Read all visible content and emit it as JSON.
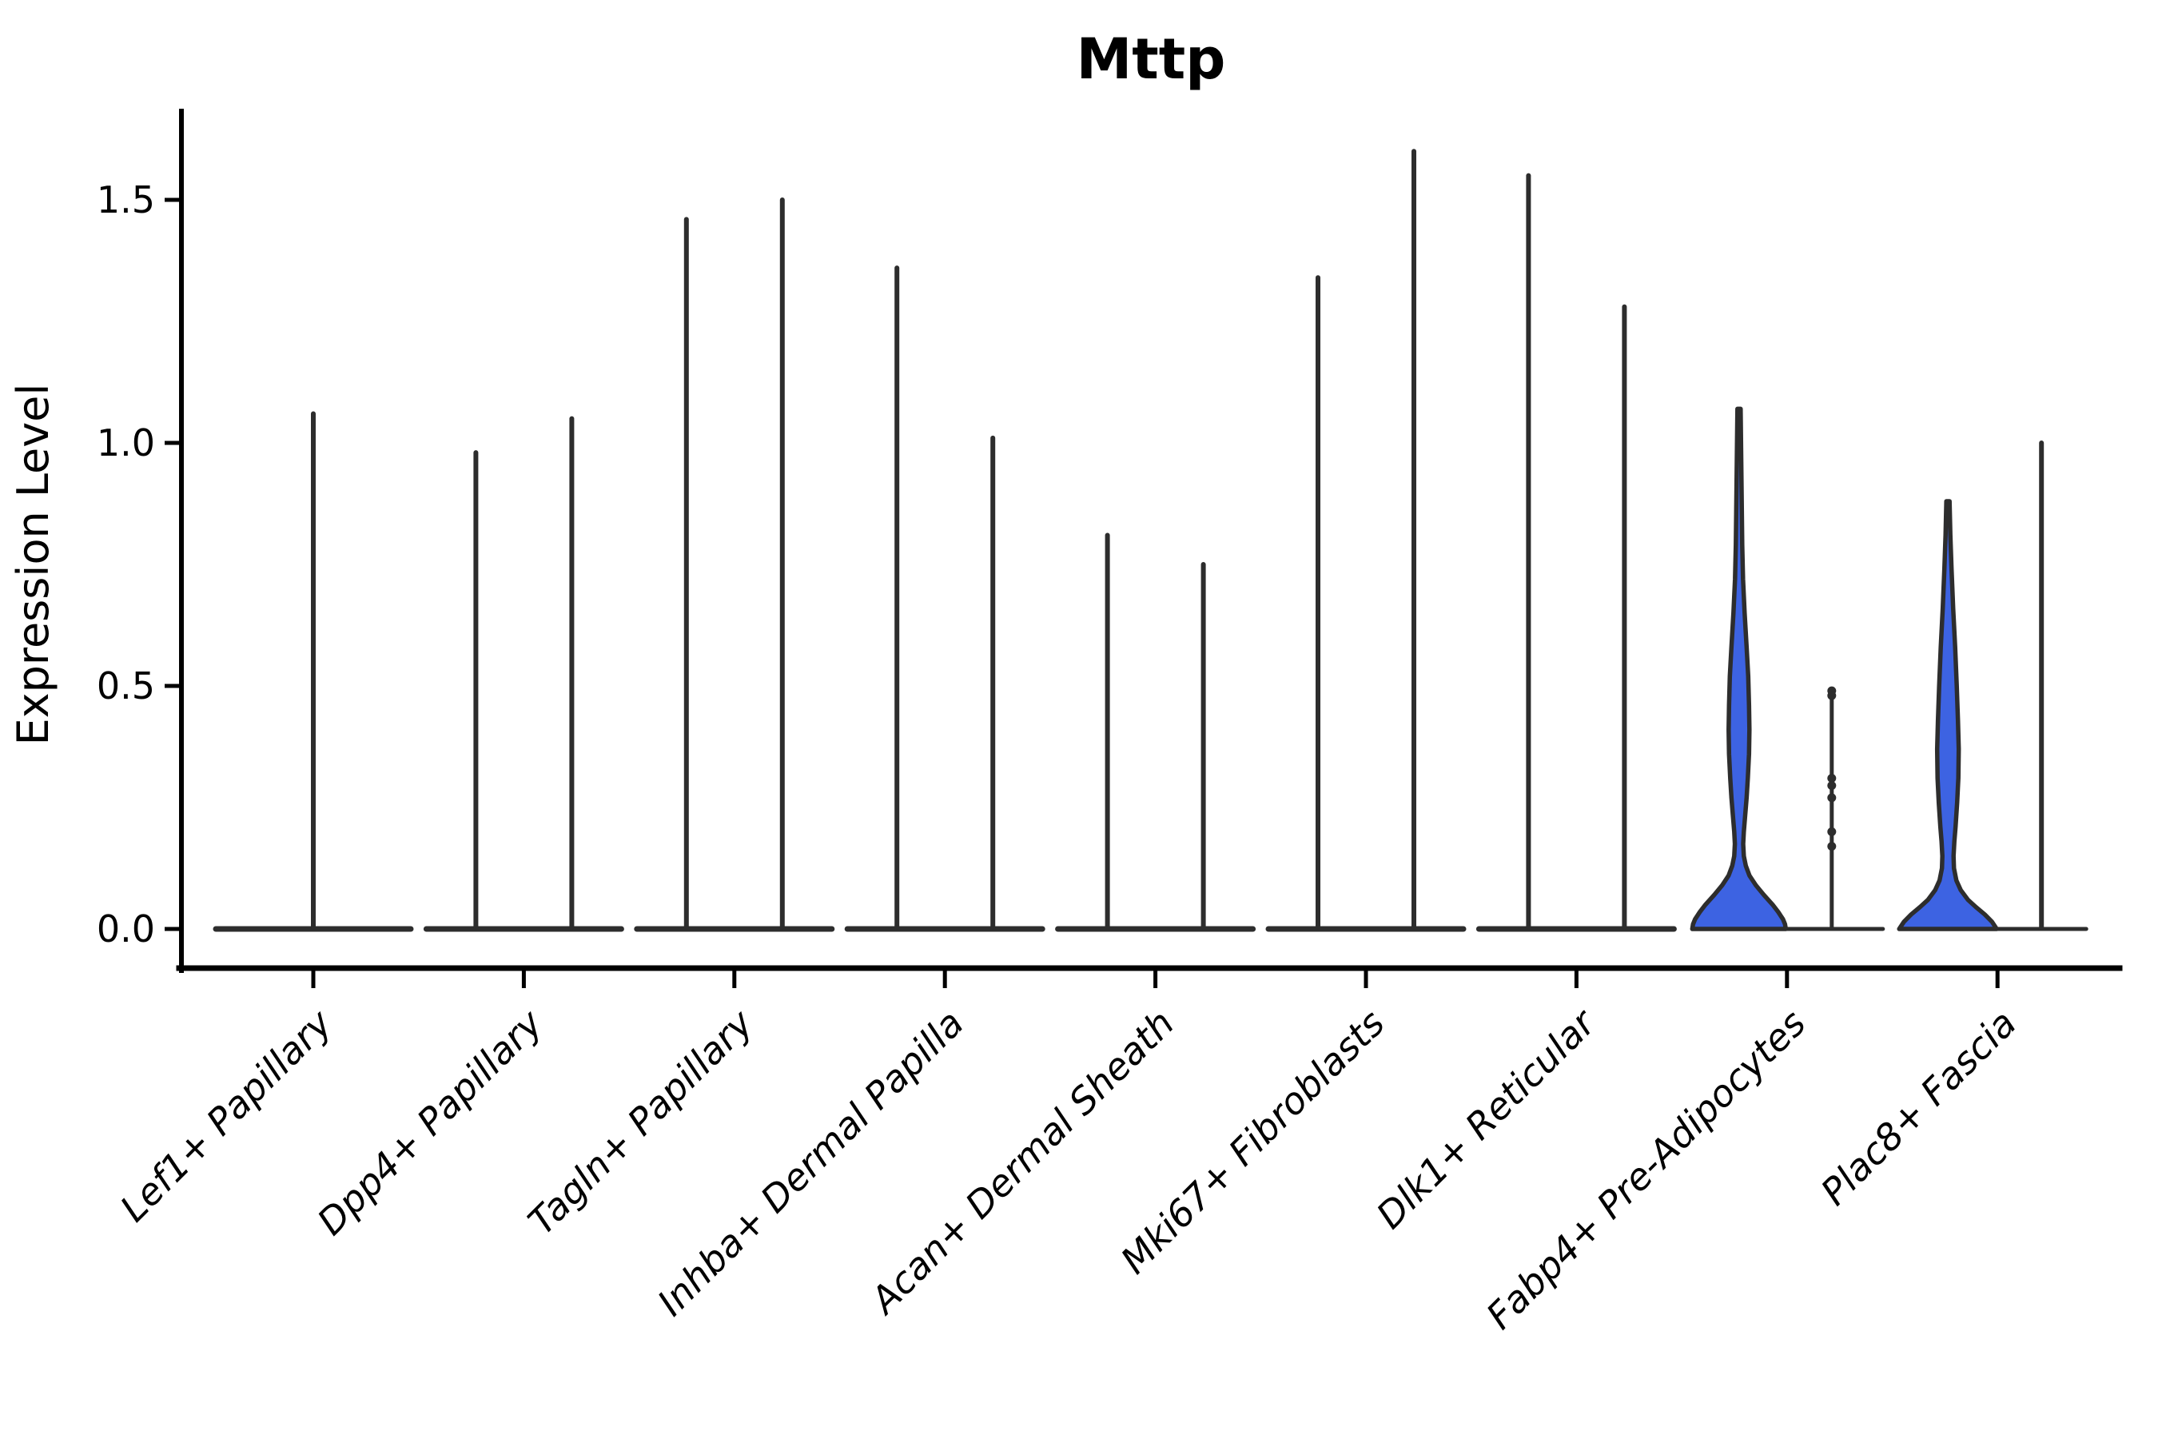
{
  "title": "Mttp",
  "chart_data": {
    "type": "violin",
    "title": "Mttp",
    "ylabel": "Expression Level",
    "ylim": [
      0,
      1.65
    ],
    "yticks": [
      0.0,
      0.5,
      1.0,
      1.5
    ],
    "ytick_labels": [
      "0.0",
      "0.5",
      "1.0",
      "1.5"
    ],
    "grid": false,
    "legend": false,
    "categories": [
      "Lef1+ Papillary",
      "Dpp4+ Papillary",
      "Tagln+ Papillary",
      "Inhba+ Dermal Papilla",
      "Acan+ Dermal Sheath",
      "Mki67+ Fibroblasts",
      "Dlk1+ Reticular",
      "Fabp4+ Pre-Adipocytes",
      "Plac8+ Fascia"
    ],
    "violins": [
      {
        "category": "Lef1+ Papillary",
        "baseline": [
          -122,
          122
        ],
        "baseline_thin": false,
        "spikes": [
          {
            "dx": 0,
            "max": 1.06
          }
        ]
      },
      {
        "category": "Dpp4+ Papillary",
        "baseline": [
          -122,
          122
        ],
        "baseline_thin": false,
        "spikes": [
          {
            "dx": -60,
            "max": 0.98
          },
          {
            "dx": 60,
            "max": 1.05
          }
        ]
      },
      {
        "category": "Tagln+ Papillary",
        "baseline": [
          -122,
          122
        ],
        "baseline_thin": false,
        "spikes": [
          {
            "dx": -60,
            "max": 1.46
          },
          {
            "dx": 60,
            "max": 1.5
          }
        ]
      },
      {
        "category": "Inhba+ Dermal Papilla",
        "baseline": [
          -122,
          122
        ],
        "baseline_thin": false,
        "spikes": [
          {
            "dx": -60,
            "max": 1.36
          },
          {
            "dx": 60,
            "max": 1.01
          }
        ]
      },
      {
        "category": "Acan+ Dermal Sheath",
        "baseline": [
          -122,
          122
        ],
        "baseline_thin": false,
        "spikes": [
          {
            "dx": -60,
            "max": 0.81
          },
          {
            "dx": 60,
            "max": 0.75
          }
        ]
      },
      {
        "category": "Mki67+ Fibroblasts",
        "baseline": [
          -122,
          122
        ],
        "baseline_thin": false,
        "spikes": [
          {
            "dx": -60,
            "max": 1.34
          },
          {
            "dx": 60,
            "max": 1.6
          }
        ]
      },
      {
        "category": "Dlk1+ Reticular",
        "baseline": [
          -122,
          122
        ],
        "baseline_thin": false,
        "spikes": [
          {
            "dx": -60,
            "max": 1.55
          },
          {
            "dx": 60,
            "max": 1.28
          }
        ]
      },
      {
        "category": "Fabp4+ Pre-Adipocytes",
        "baseline": [
          -8,
          120
        ],
        "baseline_thin": true,
        "spikes": [],
        "filled_violin": {
          "dx": -60,
          "max": 1.07,
          "profile": [
            [
              1.07,
              2
            ],
            [
              1.0,
              2.5
            ],
            [
              0.93,
              3
            ],
            [
              0.86,
              3.5
            ],
            [
              0.79,
              4
            ],
            [
              0.72,
              5
            ],
            [
              0.65,
              7
            ],
            [
              0.58,
              9.5
            ],
            [
              0.52,
              11.5
            ],
            [
              0.46,
              12.5
            ],
            [
              0.41,
              13
            ],
            [
              0.36,
              12.5
            ],
            [
              0.31,
              11
            ],
            [
              0.27,
              9.5
            ],
            [
              0.23,
              7.5
            ],
            [
              0.2,
              6
            ],
            [
              0.175,
              5.2
            ],
            [
              0.15,
              6
            ],
            [
              0.13,
              8.5
            ],
            [
              0.11,
              13
            ],
            [
              0.09,
              21
            ],
            [
              0.07,
              31
            ],
            [
              0.05,
              42
            ],
            [
              0.035,
              49
            ],
            [
              0.02,
              55
            ],
            [
              0.01,
              57.5
            ],
            [
              0.0,
              58.5
            ]
          ]
        },
        "dotted_spike": {
          "dx": 56,
          "max": 0.49,
          "points": [
            0.49,
            0.48,
            0.31,
            0.295,
            0.27,
            0.2,
            0.17
          ]
        }
      },
      {
        "category": "Plac8+ Fascia",
        "baseline": [
          -9,
          111
        ],
        "baseline_thin": true,
        "spikes": [
          {
            "dx": 55,
            "max": 1.0
          }
        ],
        "filled_violin": {
          "dx": -62,
          "max": 0.88,
          "profile": [
            [
              0.88,
              2
            ],
            [
              0.81,
              3
            ],
            [
              0.74,
              4.5
            ],
            [
              0.66,
              6.5
            ],
            [
              0.58,
              9
            ],
            [
              0.5,
              11
            ],
            [
              0.43,
              12.5
            ],
            [
              0.37,
              13.5
            ],
            [
              0.31,
              13
            ],
            [
              0.26,
              11.5
            ],
            [
              0.21,
              9.5
            ],
            [
              0.18,
              8
            ],
            [
              0.15,
              7
            ],
            [
              0.125,
              7.5
            ],
            [
              0.1,
              10.5
            ],
            [
              0.08,
              16
            ],
            [
              0.06,
              25
            ],
            [
              0.045,
              35
            ],
            [
              0.03,
              46
            ],
            [
              0.015,
              55
            ],
            [
              0.0,
              61
            ]
          ]
        }
      }
    ],
    "colors": {
      "violin_fill": "#3D63E2",
      "violin_stroke": "#2D2D2D",
      "axis": "#000000",
      "background": "#FFFFFF"
    }
  }
}
